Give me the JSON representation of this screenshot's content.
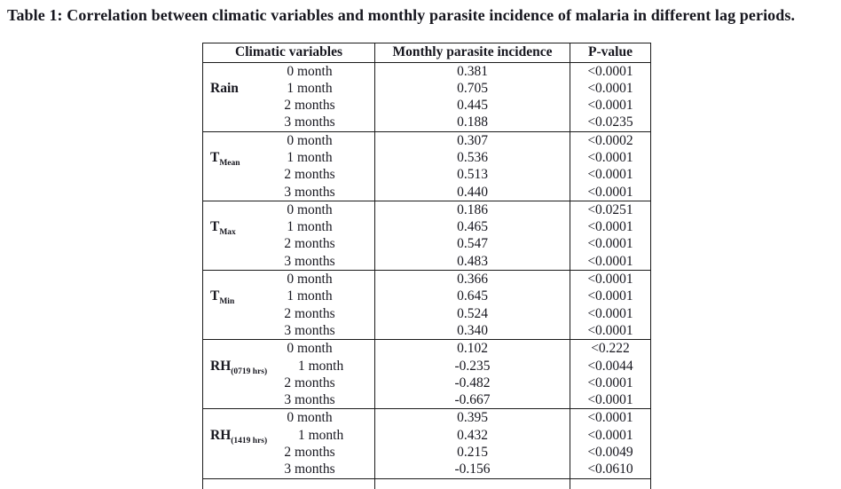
{
  "caption": "Table 1: Correlation between climatic variables and monthly parasite incidence of malaria in different lag periods.",
  "table": {
    "headers": [
      "Climatic variables",
      "Monthly parasite incidence",
      "P-value"
    ],
    "groups": [
      {
        "variable": "Rain",
        "subscript": "",
        "rows": [
          {
            "lag": "0 month",
            "incidence": "0.381",
            "p": "<0.0001"
          },
          {
            "lag": "1 month",
            "incidence": "0.705",
            "p": "<0.0001"
          },
          {
            "lag": "2 months",
            "incidence": "0.445",
            "p": "<0.0001"
          },
          {
            "lag": "3 months",
            "incidence": "0.188",
            "p": "<0.0235"
          }
        ]
      },
      {
        "variable": "T",
        "subscript": "Mean",
        "rows": [
          {
            "lag": "0 month",
            "incidence": "0.307",
            "p": "<0.0002"
          },
          {
            "lag": "1 month",
            "incidence": "0.536",
            "p": "<0.0001"
          },
          {
            "lag": "2 months",
            "incidence": "0.513",
            "p": "<0.0001"
          },
          {
            "lag": "3 months",
            "incidence": "0.440",
            "p": "<0.0001"
          }
        ]
      },
      {
        "variable": "T",
        "subscript": "Max",
        "rows": [
          {
            "lag": "0 month",
            "incidence": "0.186",
            "p": "<0.0251"
          },
          {
            "lag": "1 month",
            "incidence": "0.465",
            "p": "<0.0001"
          },
          {
            "lag": "2 months",
            "incidence": "0.547",
            "p": "<0.0001"
          },
          {
            "lag": "3 months",
            "incidence": "0.483",
            "p": "<0.0001"
          }
        ]
      },
      {
        "variable": "T",
        "subscript": "Min",
        "rows": [
          {
            "lag": "0 month",
            "incidence": "0.366",
            "p": "<0.0001"
          },
          {
            "lag": "1 month",
            "incidence": "0.645",
            "p": "<0.0001"
          },
          {
            "lag": "2 months",
            "incidence": "0.524",
            "p": "<0.0001"
          },
          {
            "lag": "3 months",
            "incidence": "0.340",
            "p": "<0.0001"
          }
        ]
      },
      {
        "variable": "RH",
        "subscript": "(0719 hrs)",
        "rows": [
          {
            "lag": "0 month",
            "incidence": "0.102",
            "p": "<0.222"
          },
          {
            "lag": "1 month",
            "incidence": "-0.235",
            "p": "<0.0044"
          },
          {
            "lag": "2 months",
            "incidence": "-0.482",
            "p": "<0.0001"
          },
          {
            "lag": "3 months",
            "incidence": "-0.667",
            "p": "<0.0001"
          }
        ]
      },
      {
        "variable": "RH",
        "subscript": "(1419 hrs)",
        "rows": [
          {
            "lag": "0 month",
            "incidence": "0.395",
            "p": "<0.0001"
          },
          {
            "lag": "1 month",
            "incidence": "0.432",
            "p": "<0.0001"
          },
          {
            "lag": "2 months",
            "incidence": "0.215",
            "p": "<0.0049"
          },
          {
            "lag": "3 months",
            "incidence": "-0.156",
            "p": "<0.0610"
          }
        ]
      }
    ]
  }
}
